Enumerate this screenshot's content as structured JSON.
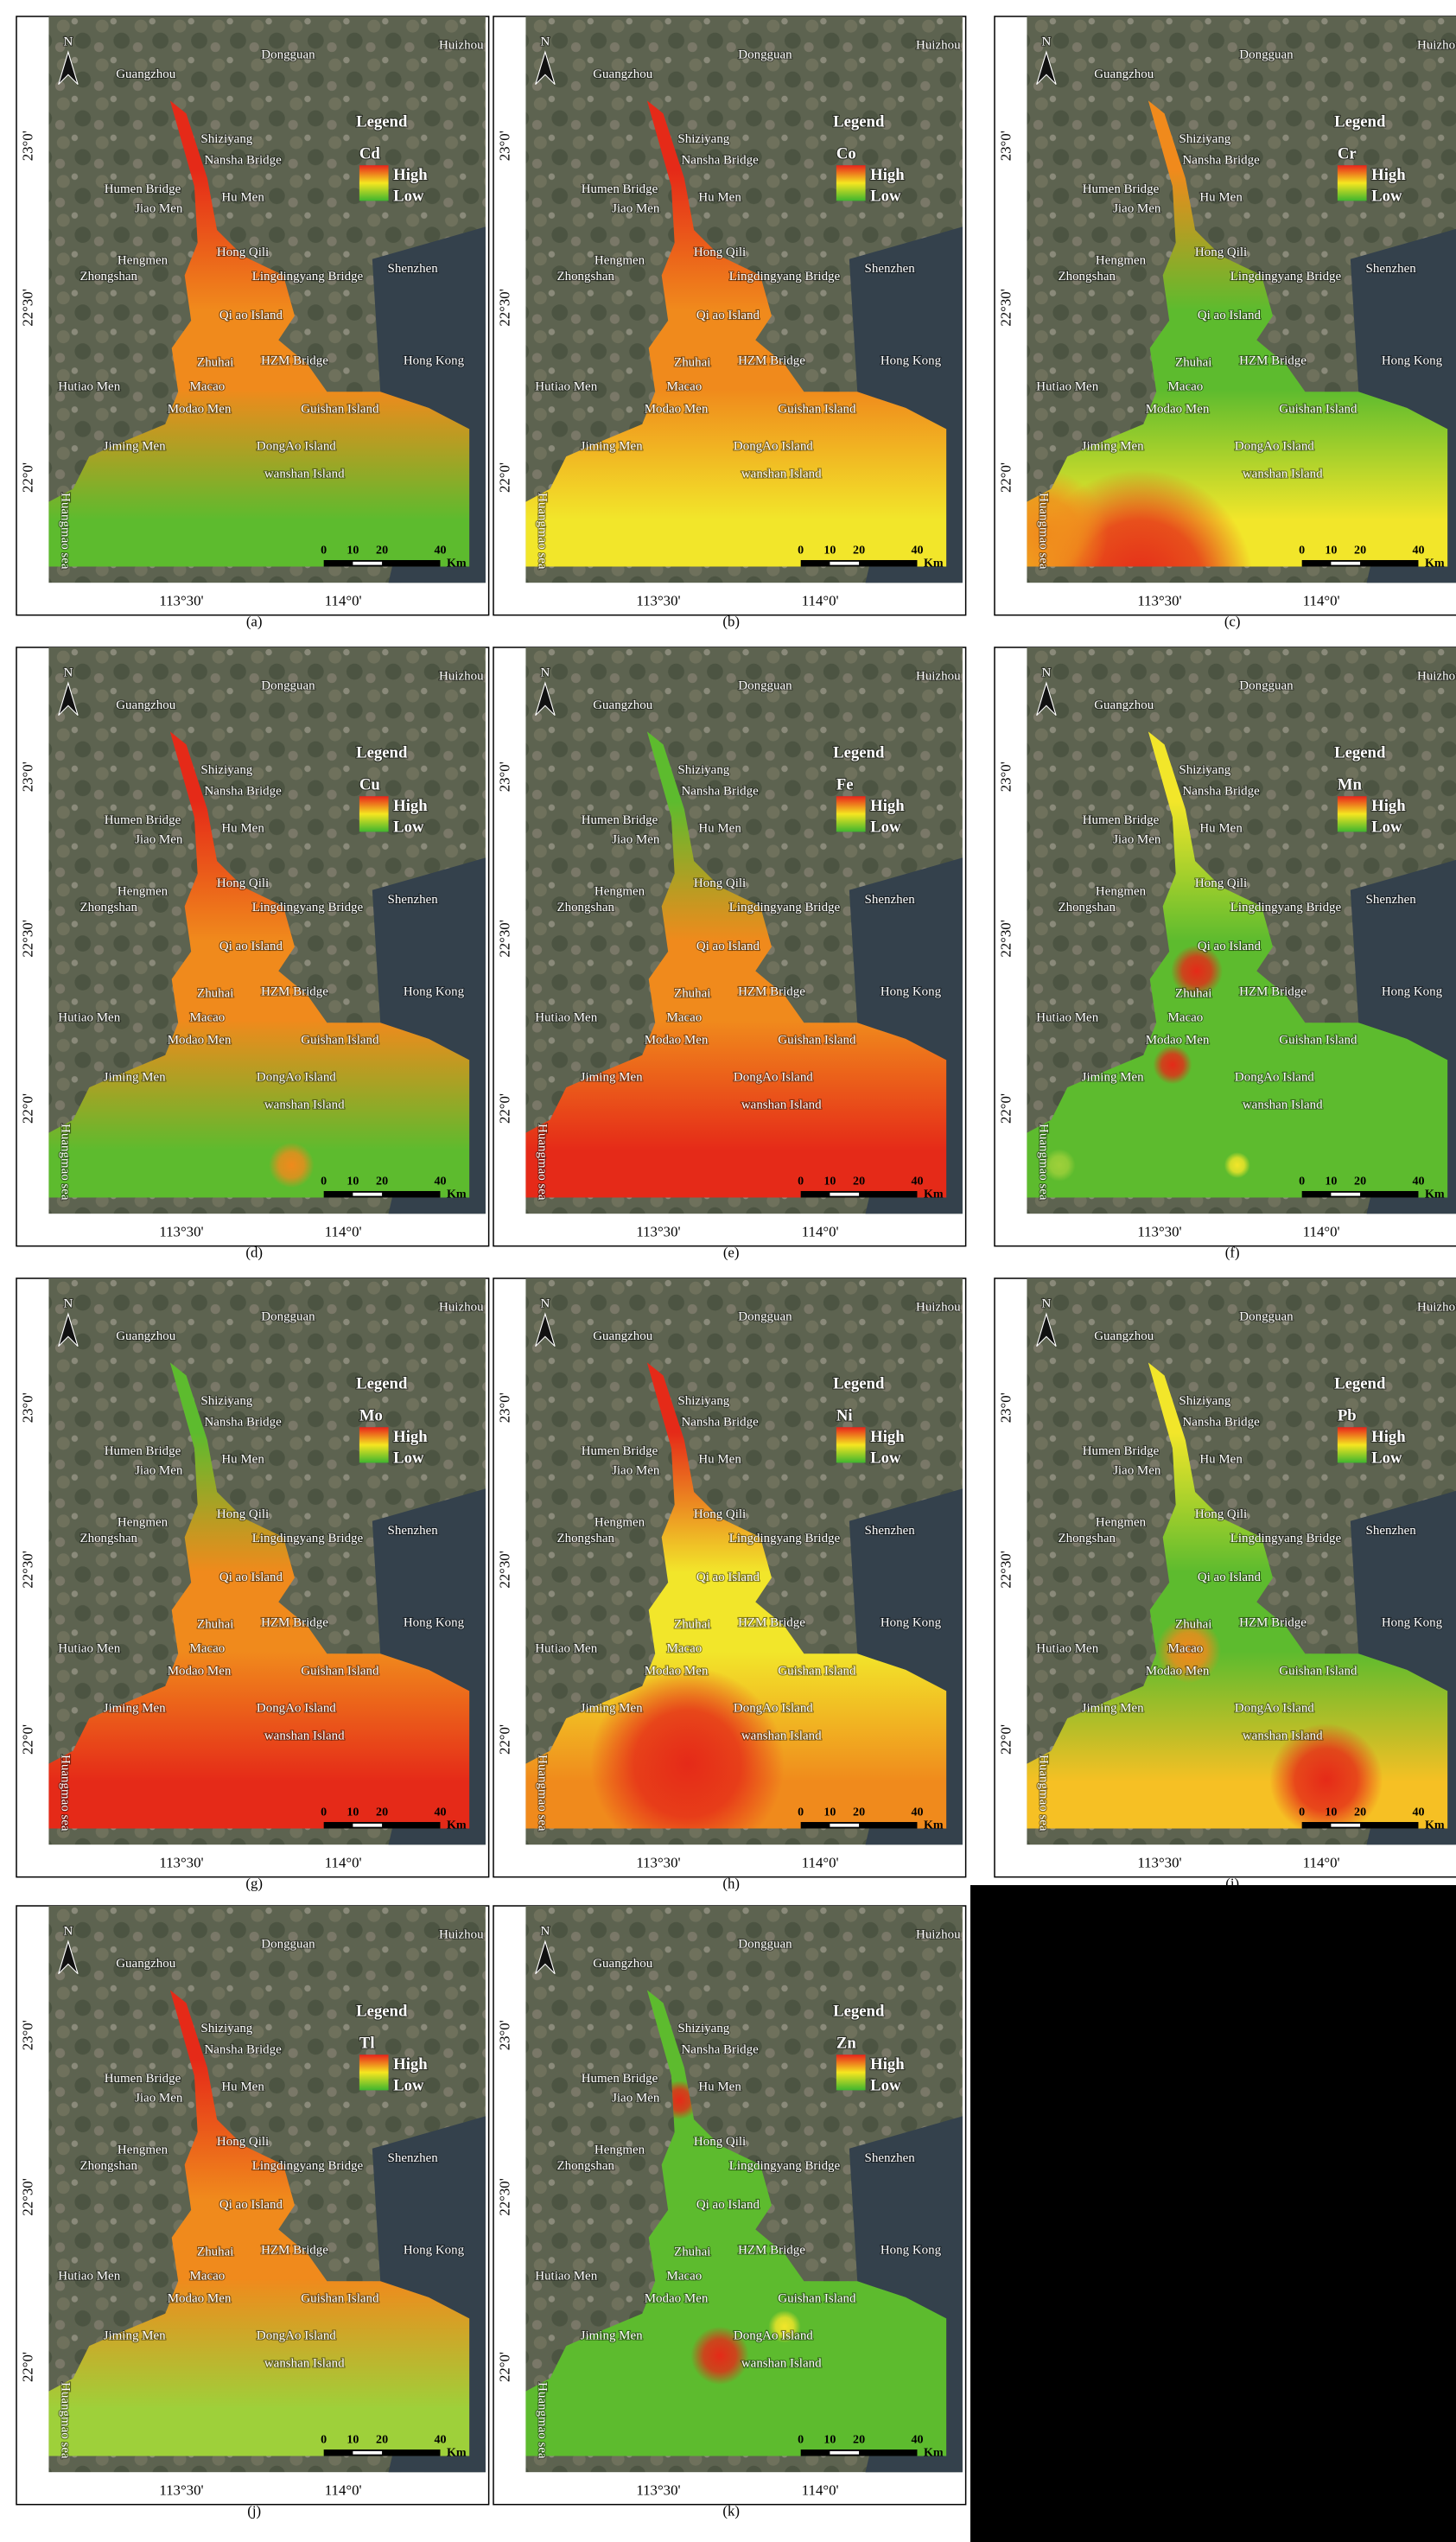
{
  "figure": {
    "places": [
      "Guangzhou",
      "Dongguan",
      "Huizhou",
      "Shiziyang",
      "Nansha Bridge",
      "Humen Bridge",
      "Hu Men",
      "Jiao Men",
      "Hengmen",
      "Hong Qili",
      "Lingdingyang Bridge",
      "Zhongshan",
      "Shenzhen",
      "Qi ao Island",
      "Hong Kong",
      "HZM Bridge",
      "Zhuhai",
      "Macao",
      "Hutiao Men",
      "Guishan Island",
      "Modao Men",
      "Jiming Men",
      "DongAo Island",
      "wanshan Island"
    ],
    "legend": {
      "title": "Legend",
      "high": "High",
      "low": "Low"
    },
    "north": "N",
    "scale": {
      "ticks": [
        0,
        10,
        20,
        40
      ],
      "unit": "Km"
    },
    "lat_labels": [
      "23°0'",
      "22°30'",
      "22°0'"
    ],
    "lon_labels": [
      "113°30'",
      "114°0'"
    ],
    "sea_label": "Huangmao sea",
    "panels": [
      {
        "element": "Cd",
        "caption": "(a)"
      },
      {
        "element": "Co",
        "caption": "(b)"
      },
      {
        "element": "Cr",
        "caption": "(c)"
      },
      {
        "element": "Cu",
        "caption": "(d)"
      },
      {
        "element": "Fe",
        "caption": "(e)"
      },
      {
        "element": "Mn",
        "caption": "(f)"
      },
      {
        "element": "Mo",
        "caption": "(g)"
      },
      {
        "element": "Ni",
        "caption": "(h)"
      },
      {
        "element": "Pb",
        "caption": "(i)"
      },
      {
        "element": "Tl",
        "caption": "(j)"
      },
      {
        "element": "Zn",
        "caption": "(k)"
      }
    ]
  }
}
